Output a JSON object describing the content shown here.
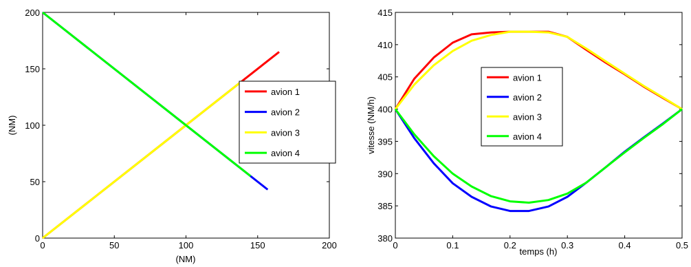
{
  "chart_data": [
    {
      "type": "line",
      "xlabel": "(NM)",
      "ylabel": "(NM)",
      "xlim": [
        0,
        200
      ],
      "ylim": [
        0,
        200
      ],
      "xticks": [
        "0",
        "50",
        "100",
        "150",
        "200"
      ],
      "yticks": [
        "0",
        "50",
        "100",
        "150",
        "200"
      ],
      "grid": false,
      "legend_position": "right",
      "series": [
        {
          "name": "avion 1",
          "color": "#ff0000",
          "x": [
            0,
            165
          ],
          "y": [
            0,
            165
          ]
        },
        {
          "name": "avion 2",
          "color": "#0000ff",
          "x": [
            0,
            157
          ],
          "y": [
            200,
            43
          ]
        },
        {
          "name": "avion 3",
          "color": "#ffff00",
          "x": [
            0,
            139
          ],
          "y": [
            0,
            139
          ]
        },
        {
          "name": "avion 4",
          "color": "#00ff00",
          "x": [
            0,
            145
          ],
          "y": [
            200,
            55
          ]
        }
      ]
    },
    {
      "type": "line",
      "xlabel": "temps (h)",
      "ylabel": "vitesse (NM/h)",
      "xlim": [
        0,
        0.5
      ],
      "ylim": [
        380,
        415
      ],
      "xticks": [
        "0",
        "0.1",
        "0.2",
        "0.3",
        "0.4",
        "0.5"
      ],
      "yticks": [
        "380",
        "385",
        "390",
        "395",
        "400",
        "405",
        "410",
        "415"
      ],
      "grid": false,
      "legend_position": "center",
      "series": [
        {
          "name": "avion 1",
          "color": "#ff0000",
          "x": [
            0,
            0.033,
            0.067,
            0.1,
            0.133,
            0.167,
            0.2,
            0.233,
            0.267,
            0.3,
            0.333,
            0.367,
            0.4,
            0.433,
            0.467,
            0.5
          ],
          "y": [
            400,
            404.7,
            408,
            410.3,
            411.6,
            411.9,
            412,
            412,
            412,
            411.2,
            409.2,
            407.2,
            405.4,
            403.5,
            401.7,
            400
          ]
        },
        {
          "name": "avion 2",
          "color": "#0000ff",
          "x": [
            0,
            0.033,
            0.067,
            0.1,
            0.133,
            0.167,
            0.2,
            0.233,
            0.267,
            0.3,
            0.333,
            0.367,
            0.4,
            0.433,
            0.467,
            0.5
          ],
          "y": [
            400,
            395.5,
            391.6,
            388.5,
            386.4,
            384.9,
            384.2,
            384.2,
            384.9,
            386.4,
            388.6,
            391,
            393.4,
            395.6,
            397.8,
            400
          ]
        },
        {
          "name": "avion 3",
          "color": "#ffff00",
          "x": [
            0,
            0.033,
            0.067,
            0.1,
            0.133,
            0.167,
            0.2,
            0.233,
            0.267,
            0.3,
            0.333,
            0.367,
            0.4,
            0.433,
            0.467,
            0.5
          ],
          "y": [
            400,
            403.8,
            406.8,
            409,
            410.6,
            411.5,
            412,
            412,
            411.9,
            411.2,
            409.4,
            407.4,
            405.5,
            403.6,
            401.8,
            400
          ]
        },
        {
          "name": "avion 4",
          "color": "#00ff00",
          "x": [
            0,
            0.033,
            0.067,
            0.1,
            0.133,
            0.167,
            0.2,
            0.233,
            0.267,
            0.3,
            0.333,
            0.367,
            0.4,
            0.433,
            0.467,
            0.5
          ],
          "y": [
            400,
            396.1,
            392.7,
            390,
            388,
            386.5,
            385.7,
            385.5,
            385.9,
            386.9,
            388.6,
            391,
            393.3,
            395.5,
            397.7,
            400
          ]
        }
      ]
    }
  ]
}
